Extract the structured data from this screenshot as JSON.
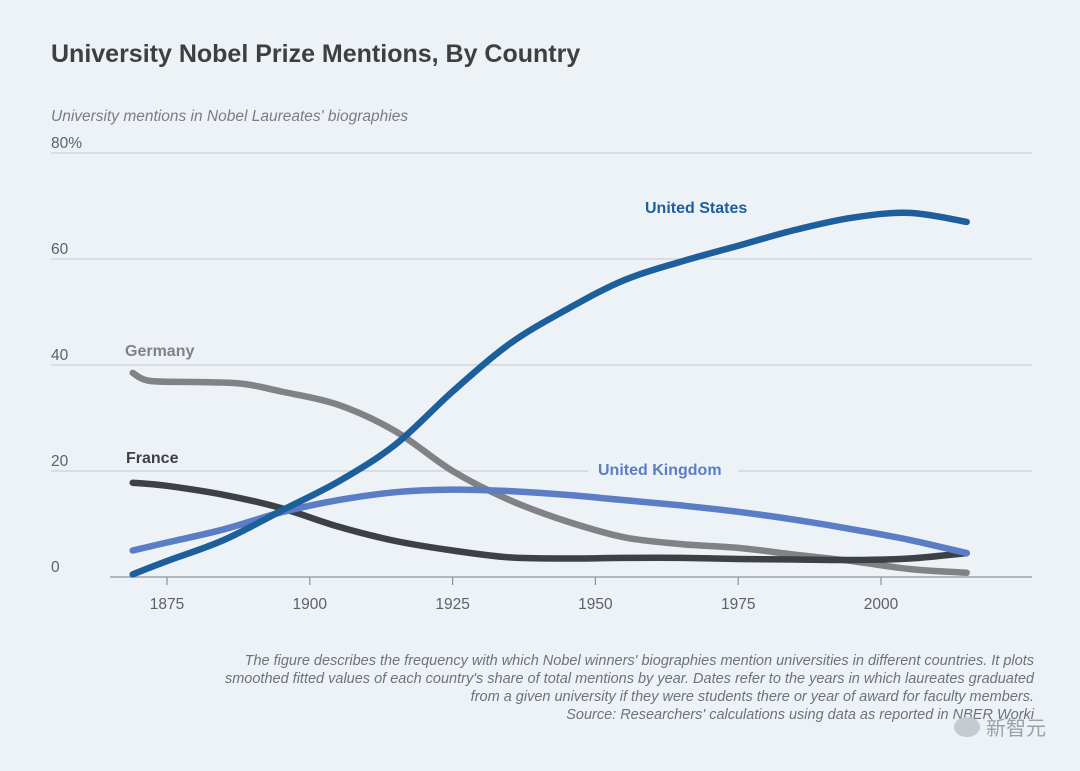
{
  "chart_data": {
    "type": "line",
    "title": "University Nobel Prize Mentions, By Country",
    "ylabel": "University mentions in Nobel Laureates' biographies",
    "y_ticks": [
      "80%",
      "60",
      "40",
      "20",
      "0"
    ],
    "y_tick_values": [
      80,
      60,
      40,
      20,
      0
    ],
    "x_ticks": [
      "1875",
      "1900",
      "1925",
      "1950",
      "1975",
      "2000"
    ],
    "x_tick_values": [
      1875,
      1900,
      1925,
      1950,
      1975,
      2000
    ],
    "xlim": [
      1860,
      2025
    ],
    "ylim": [
      0,
      80
    ],
    "grid": true,
    "series": [
      {
        "name": "United States",
        "color": "#1d5f9b",
        "x": [
          1869,
          1875,
          1885,
          1895,
          1905,
          1915,
          1925,
          1935,
          1945,
          1955,
          1965,
          1975,
          1985,
          1995,
          2005,
          2015
        ],
        "y": [
          0.5,
          3,
          7,
          12.5,
          18,
          25,
          35,
          44,
          50.5,
          56,
          59.5,
          62.5,
          65.5,
          67.8,
          68.7,
          67
        ]
      },
      {
        "name": "Germany",
        "color": "#808285",
        "x": [
          1869,
          1872,
          1880,
          1888,
          1895,
          1905,
          1915,
          1925,
          1935,
          1945,
          1955,
          1965,
          1975,
          1985,
          1995,
          2005,
          2015
        ],
        "y": [
          38.5,
          37,
          36.8,
          36.5,
          35,
          32.5,
          27.5,
          20,
          14.5,
          10.5,
          7.5,
          6.2,
          5.5,
          4.2,
          3,
          1.5,
          0.8
        ]
      },
      {
        "name": "France",
        "color": "#3d4044",
        "x": [
          1869,
          1875,
          1885,
          1895,
          1905,
          1915,
          1925,
          1935,
          1945,
          1955,
          1965,
          1975,
          1985,
          1995,
          2005,
          2015
        ],
        "y": [
          17.8,
          17.2,
          15.5,
          13,
          9.5,
          6.8,
          5,
          3.7,
          3.5,
          3.6,
          3.6,
          3.4,
          3.3,
          3.2,
          3.5,
          4.5
        ]
      },
      {
        "name": "United Kingdom",
        "color": "#5a7dc6",
        "x": [
          1869,
          1875,
          1885,
          1895,
          1905,
          1915,
          1925,
          1935,
          1945,
          1955,
          1965,
          1975,
          1985,
          1995,
          2005,
          2015
        ],
        "y": [
          5,
          6.5,
          9,
          12.2,
          14.5,
          16,
          16.5,
          16.2,
          15.5,
          14.5,
          13.5,
          12.3,
          10.8,
          9,
          7,
          4.5
        ]
      }
    ]
  },
  "note_lines": [
    "The figure describes the frequency with which Nobel winners' biographies mention universities in different countries. It plots",
    "smoothed fitted values of each country's share of total mentions by year. Dates refer to the years in which laureates graduated",
    "from a given university if they were students there or year of award for faculty members.",
    "Source: Researchers' calculations using data as reported in NBER Worki"
  ],
  "watermark": "新智元"
}
